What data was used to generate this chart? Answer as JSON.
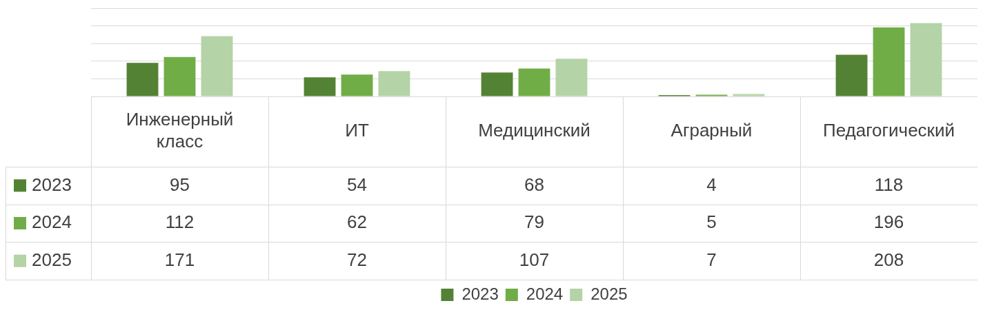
{
  "chart_data": {
    "type": "bar",
    "categories": [
      "Инженерный класс",
      "ИТ",
      "Медицинский",
      "Аграрный",
      "Педагогический"
    ],
    "series": [
      {
        "name": "2023",
        "color": "#548235",
        "values": [
          95,
          54,
          68,
          4,
          118
        ]
      },
      {
        "name": "2024",
        "color": "#70ad47",
        "values": [
          112,
          62,
          79,
          5,
          196
        ]
      },
      {
        "name": "2025",
        "color": "#b4d3a7",
        "values": [
          171,
          72,
          107,
          7,
          208
        ]
      }
    ],
    "ylim": [
      0,
      250
    ],
    "yticks": [
      {
        "value": 0,
        "label": null
      },
      {
        "value": 50,
        "label": null
      },
      {
        "value": 100,
        "label": null
      },
      {
        "value": 150,
        "label": null
      },
      {
        "value": 200,
        "label": null
      },
      {
        "value": 250,
        "label": null
      }
    ],
    "grid": "y",
    "tick_labels": "x",
    "legend": "bottom",
    "data_labels": true
  }
}
